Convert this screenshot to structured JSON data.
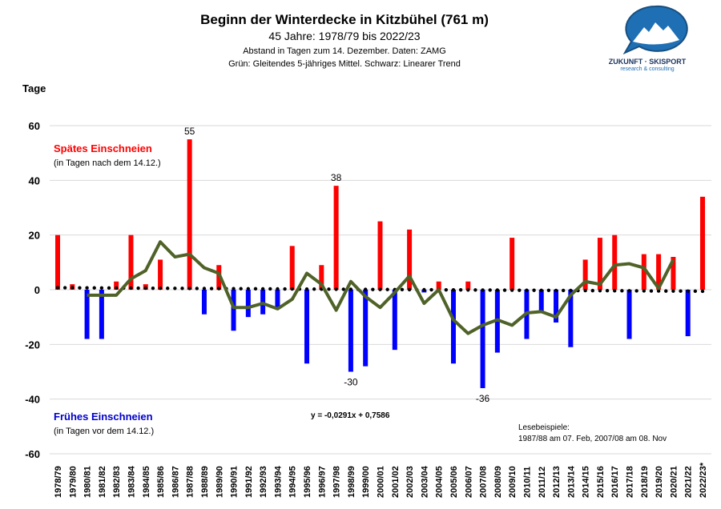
{
  "chart_data": {
    "type": "bar",
    "title": "Beginn der Winterdecke in Kitzbühel (761 m)",
    "subtitle": "45 Jahre: 1978/79 bis 2022/23",
    "note1": "Abstand in Tagen zum 14. Dezember. Daten: ZAMG",
    "note2": "Grün: Gleitendes 5-jähriges Mittel. Schwarz: Linearer Trend",
    "ylabel": "Tage",
    "ylim": [
      -60,
      60
    ],
    "yticks": [
      60,
      40,
      20,
      0,
      -20,
      -40,
      -60
    ],
    "grid": true,
    "categories": [
      "1978/79",
      "1979/80",
      "1980/81",
      "1981/82",
      "1982/83",
      "1983/84",
      "1984/85",
      "1985/86",
      "1986/87",
      "1987/88",
      "1988/89",
      "1989/90",
      "1990/91",
      "1991/92",
      "1992/93",
      "1993/94",
      "1994/95",
      "1995/96",
      "1996/97",
      "1997/98",
      "1998/99",
      "1999/00",
      "2000/01",
      "2001/02",
      "2002/03",
      "2003/04",
      "2004/05",
      "2005/06",
      "2006/07",
      "2007/08",
      "2008/09",
      "2009/10",
      "2010/11",
      "2011/12",
      "2012/13",
      "2013/14",
      "2014/15",
      "2015/16",
      "2016/17",
      "2017/18",
      "2018/19",
      "2019/20",
      "2020/21",
      "2021/22",
      "2022/23*"
    ],
    "values": [
      20,
      2,
      -18,
      -18,
      3,
      20,
      2,
      11,
      0,
      55,
      -9,
      9,
      -15,
      -10,
      -9,
      -7,
      16,
      -27,
      9,
      38,
      -30,
      -28,
      25,
      -22,
      22,
      -1,
      3,
      -27,
      3,
      -36,
      -23,
      19,
      -18,
      -8,
      -12,
      -21,
      11,
      19,
      20,
      -18,
      13,
      13,
      12,
      -17,
      34
    ],
    "moving_average": [
      null,
      null,
      -2,
      -2,
      -2,
      4,
      7,
      17.5,
      12,
      13,
      8,
      6,
      -6.5,
      -6.5,
      -5,
      -7,
      -3.5,
      6,
      2,
      -7.5,
      3,
      -2.5,
      -6.5,
      -1,
      5,
      -5,
      0,
      -11,
      -16,
      -13,
      -11,
      -13,
      -8.5,
      -8,
      -10,
      -2,
      3,
      2,
      9,
      9.5,
      8,
      0.5,
      11,
      null,
      null
    ],
    "trend": {
      "slope": -0.0291,
      "intercept": 0.7586,
      "label": "y = -0,0291x + 0,7586"
    },
    "data_labels": [
      {
        "index": 9,
        "text": "55"
      },
      {
        "index": 19,
        "text": "38"
      },
      {
        "index": 20,
        "text": "-30"
      },
      {
        "index": 29,
        "text": "-36"
      }
    ],
    "colors": {
      "positive": "#ff0000",
      "negative": "#0000ff",
      "moving_average": "#4f6228",
      "trend": "#000000",
      "grid": "#d9d9d9"
    }
  },
  "annotations": {
    "late_title": "Spätes Einschneien",
    "late_sub": "(in Tagen nach dem 14.12.)",
    "early_title": "Frühes Einschneien",
    "early_sub": "(in Tagen vor dem 14.12.)",
    "examples_title": "Lesebeispiele:",
    "examples_text": "1987/88 am 07. Feb, 2007/08 am 08. Nov"
  },
  "logo": {
    "name": "ZUKUNFT · SKISPORT",
    "tagline": "research & consulting",
    "color": "#1f6fb4"
  }
}
